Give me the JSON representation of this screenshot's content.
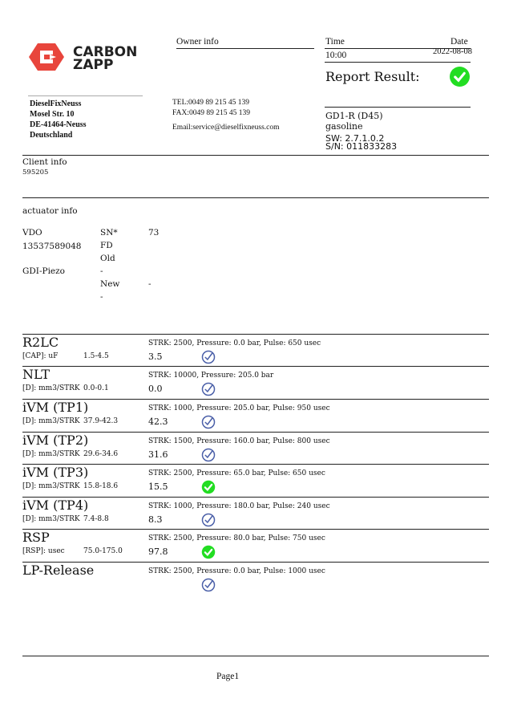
{
  "logo": {
    "line1": "CARBON",
    "line2": "ZAPP",
    "color": "#e8453c"
  },
  "company": {
    "name": "DieselFixNeuss",
    "street": "Mosel Str. 10",
    "city": "DE-41464-Neuss",
    "country": "Deutschland"
  },
  "owner": {
    "label": "Owner info",
    "tel": "TEL:0049 89 215 45 139",
    "fax": "FAX:0049 89 215 45 139",
    "email": "Email:service@dieselfixneuss.com"
  },
  "report": {
    "time_label": "Time",
    "date_label": "Date",
    "time": "10:00",
    "date": "2022-08-08",
    "result_label": "Report Result:",
    "result": "pass"
  },
  "device": {
    "model": "GD1-R (D45)",
    "fuel": "gasoline",
    "sw": "SW: 2.7.1.0.2",
    "sn": "S/N: 011833283"
  },
  "client": {
    "label": "Client info",
    "id": "595205"
  },
  "actuator": {
    "label": "actuator info",
    "brand": "VDO",
    "sn_label": "SN*",
    "sn_value": "73",
    "number": "13537589048",
    "fd": "FD",
    "old": "Old",
    "type": "GDI-Piezo",
    "dash1": "-",
    "new": "New",
    "dash2": "-",
    "dash3": "-"
  },
  "tests": [
    {
      "title": "R2LC",
      "params": "STRK: 2500, Pressure: 0.0 bar, Pulse: 650 usec",
      "unit": "[CAP]: uF",
      "range": "1.5-4.5",
      "value": "3.5",
      "status": "check-outline"
    },
    {
      "title": "NLT",
      "params": "STRK: 10000, Pressure: 205.0 bar",
      "unit": "[D]: mm3/STRK",
      "range": "0.0-0.1",
      "value": "0.0",
      "status": "check-outline"
    },
    {
      "title": "iVM (TP1)",
      "params": "STRK: 1000, Pressure: 205.0 bar, Pulse: 950 usec",
      "unit": "[D]: mm3/STRK",
      "range": "37.9-42.3",
      "value": "42.3",
      "status": "check-outline"
    },
    {
      "title": "iVM (TP2)",
      "params": "STRK: 1500, Pressure: 160.0 bar, Pulse: 800 usec",
      "unit": "[D]: mm3/STRK",
      "range": "29.6-34.6",
      "value": "31.6",
      "status": "check-outline"
    },
    {
      "title": "iVM (TP3)",
      "params": "STRK: 2500, Pressure: 65.0 bar, Pulse: 650 usec",
      "unit": "[D]: mm3/STRK",
      "range": "15.8-18.6",
      "value": "15.5",
      "status": "check-green"
    },
    {
      "title": "iVM (TP4)",
      "params": "STRK: 1000, Pressure: 180.0 bar, Pulse: 240 usec",
      "unit": "[D]: mm3/STRK",
      "range": "7.4-8.8",
      "value": "8.3",
      "status": "check-outline"
    },
    {
      "title": "RSP",
      "params": "STRK: 2500, Pressure: 80.0 bar, Pulse: 750 usec",
      "unit": "[RSP]: usec",
      "range": "75.0-175.0",
      "value": "97.8",
      "status": "check-green"
    },
    {
      "title": "LP-Release",
      "params": "STRK: 2500, Pressure: 0.0 bar, Pulse: 1000 usec",
      "unit": "",
      "range": "",
      "value": "",
      "status": "check-outline"
    }
  ],
  "footer": {
    "page": "Page1"
  },
  "colors": {
    "pass_green": "#22dd22",
    "outline_blue": "#4a5fa8"
  }
}
